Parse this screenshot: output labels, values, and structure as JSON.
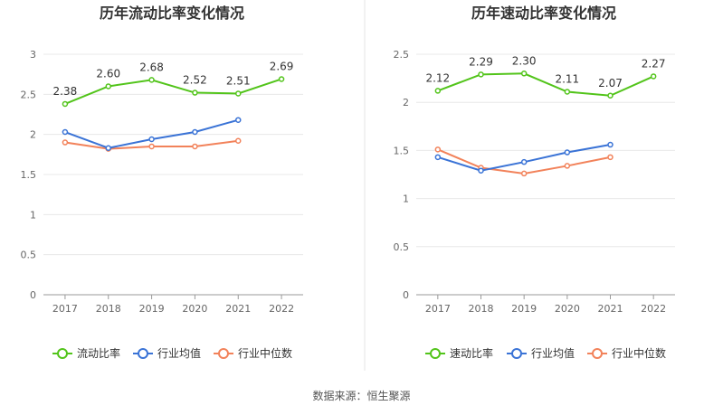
{
  "source": "数据来源：恒生聚源",
  "chart_data": [
    {
      "type": "line",
      "title": "历年流动比率变化情况",
      "categories": [
        "2017",
        "2018",
        "2019",
        "2020",
        "2021",
        "2022"
      ],
      "ylim": [
        0,
        3
      ],
      "yticks": [
        "0",
        "0.5",
        "1",
        "1.5",
        "2",
        "2.5",
        "3"
      ],
      "grid": true,
      "legend_position": "bottom",
      "series": [
        {
          "name": "流动比率",
          "color": "#52c41a",
          "values": [
            2.38,
            2.6,
            2.68,
            2.52,
            2.51,
            2.69
          ],
          "labels": [
            "2.38",
            "2.60",
            "2.68",
            "2.52",
            "2.51",
            "2.69"
          ]
        },
        {
          "name": "行业均值",
          "color": "#3a73d6",
          "values": [
            2.03,
            1.83,
            1.94,
            2.03,
            2.18,
            null
          ]
        },
        {
          "name": "行业中位数",
          "color": "#f2825a",
          "values": [
            1.9,
            1.82,
            1.85,
            1.85,
            1.92,
            null
          ]
        }
      ]
    },
    {
      "type": "line",
      "title": "历年速动比率变化情况",
      "categories": [
        "2017",
        "2018",
        "2019",
        "2020",
        "2021",
        "2022"
      ],
      "ylim": [
        0,
        2.5
      ],
      "yticks": [
        "0",
        "0.5",
        "1",
        "1.5",
        "2",
        "2.5"
      ],
      "grid": true,
      "legend_position": "bottom",
      "series": [
        {
          "name": "速动比率",
          "color": "#52c41a",
          "values": [
            2.12,
            2.29,
            2.3,
            2.11,
            2.07,
            2.27
          ],
          "labels": [
            "2.12",
            "2.29",
            "2.30",
            "2.11",
            "2.07",
            "2.27"
          ]
        },
        {
          "name": "行业均值",
          "color": "#3a73d6",
          "values": [
            1.43,
            1.29,
            1.38,
            1.48,
            1.56,
            null
          ]
        },
        {
          "name": "行业中位数",
          "color": "#f2825a",
          "values": [
            1.51,
            1.32,
            1.26,
            1.34,
            1.43,
            null
          ]
        }
      ]
    }
  ]
}
